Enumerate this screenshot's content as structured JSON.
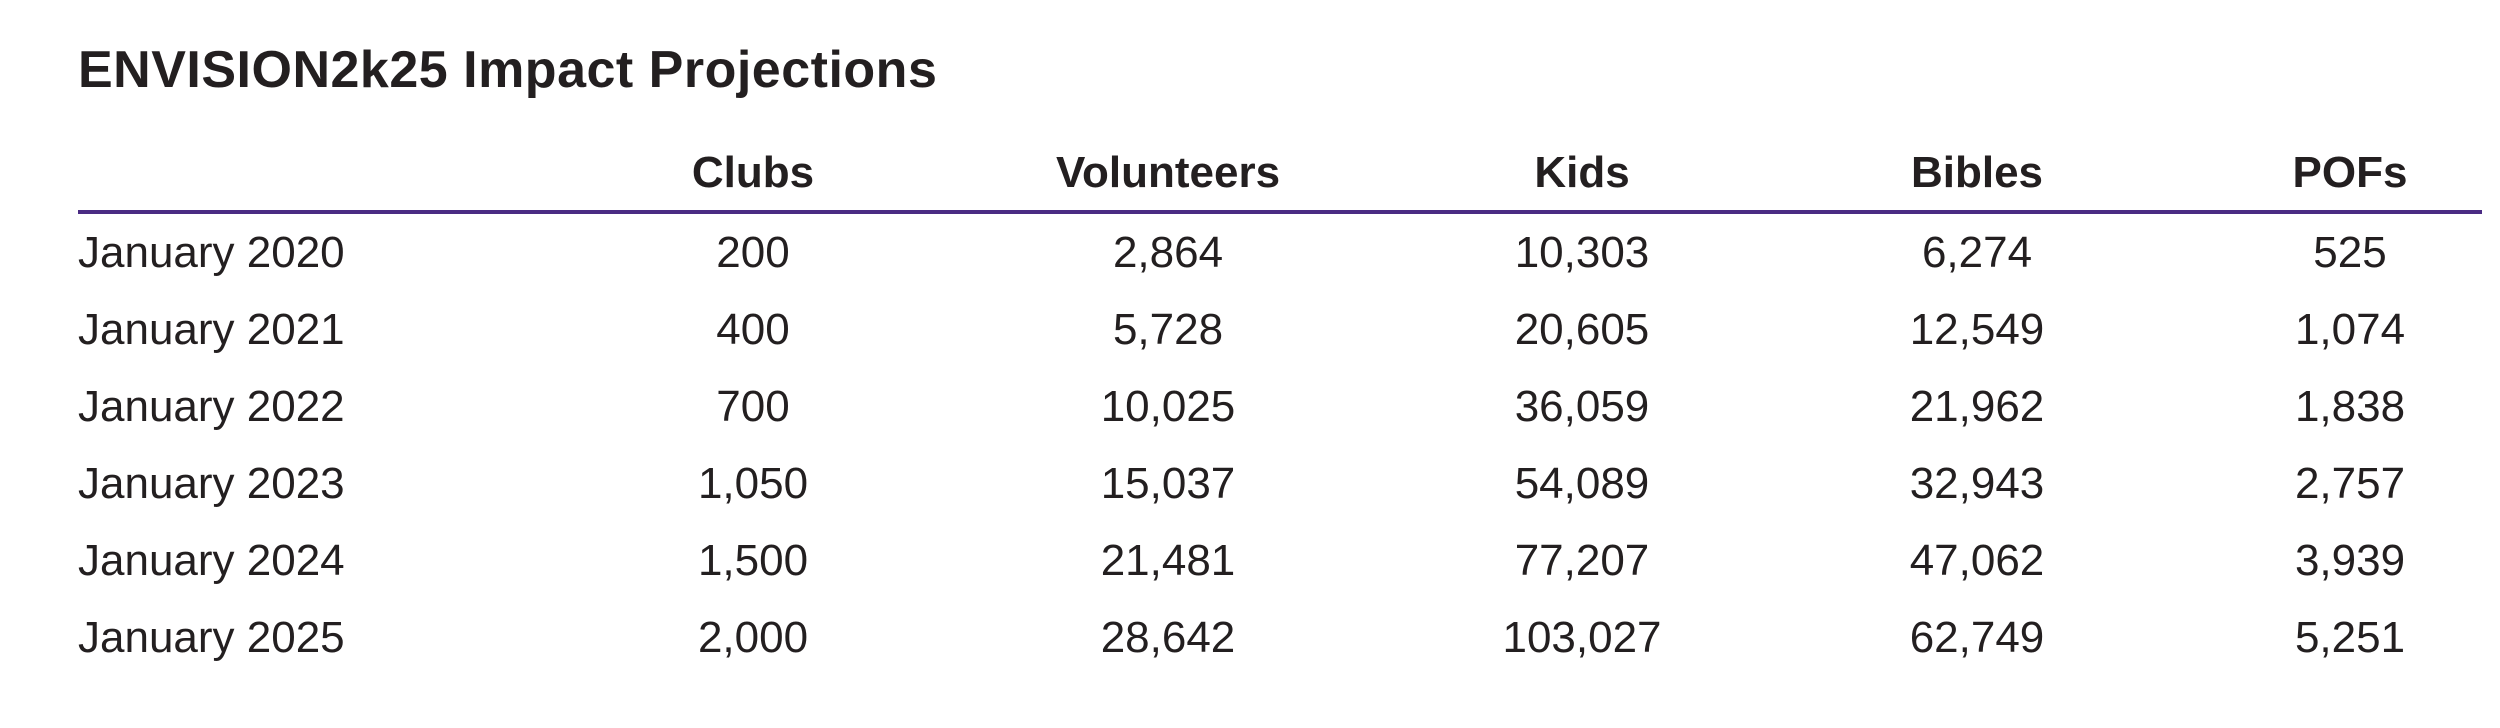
{
  "title": "ENVISION2k25 Impact Projections",
  "chart_data": {
    "type": "table",
    "title": "ENVISION2k25 Impact Projections",
    "columns": [
      "",
      "Clubs",
      "Volunteers",
      "Kids",
      "Bibles",
      "POFs"
    ],
    "rows": [
      {
        "label": "January 2020",
        "cells": [
          "200",
          "2,864",
          "10,303",
          "6,274",
          "525"
        ]
      },
      {
        "label": "January 2021",
        "cells": [
          "400",
          "5,728",
          "20,605",
          "12,549",
          "1,074"
        ]
      },
      {
        "label": "January 2022",
        "cells": [
          "700",
          "10,025",
          "36,059",
          "21,962",
          "1,838"
        ]
      },
      {
        "label": "January 2023",
        "cells": [
          "1,050",
          "15,037",
          "54,089",
          "32,943",
          "2,757"
        ]
      },
      {
        "label": "January 2024",
        "cells": [
          "1,500",
          "21,481",
          "77,207",
          "47,062",
          "3,939"
        ]
      },
      {
        "label": "January 2025",
        "cells": [
          "2,000",
          "28,642",
          "103,027",
          "62,749",
          "5,251"
        ]
      }
    ],
    "header_rule_color": "#4a2b83",
    "text_color": "#231f20"
  }
}
